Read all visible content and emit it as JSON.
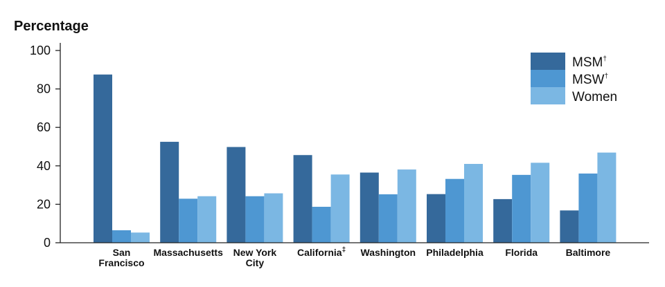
{
  "chart_data": {
    "type": "bar",
    "ylabel": "Percentage",
    "ylim": [
      0,
      100
    ],
    "yticks": [
      "0",
      "20",
      "40",
      "60",
      "80",
      "100"
    ],
    "categories": [
      {
        "line1": "San",
        "line2": "Francisco",
        "sup": ""
      },
      {
        "line1": "Massachusetts",
        "line2": "",
        "sup": ""
      },
      {
        "line1": "New York",
        "line2": "City",
        "sup": ""
      },
      {
        "line1": "California",
        "line2": "",
        "sup": "‡"
      },
      {
        "line1": "Washington",
        "line2": "",
        "sup": ""
      },
      {
        "line1": "Philadelphia",
        "line2": "",
        "sup": ""
      },
      {
        "line1": "Florida",
        "line2": "",
        "sup": ""
      },
      {
        "line1": "Baltimore",
        "line2": "",
        "sup": ""
      }
    ],
    "series": [
      {
        "name": "MSM",
        "sup": "†",
        "color": "#35699b",
        "values": [
          87.5,
          52.5,
          49.8,
          45.6,
          36.5,
          25.3,
          22.7,
          16.8
        ]
      },
      {
        "name": "MSW",
        "sup": "†",
        "color": "#4e97d2",
        "values": [
          6.5,
          22.9,
          24.2,
          18.7,
          25.2,
          33.2,
          35.3,
          36.0
        ]
      },
      {
        "name": "Women",
        "sup": "",
        "color": "#7bb7e3",
        "values": [
          5.3,
          24.2,
          25.7,
          35.5,
          38.1,
          41.0,
          41.6,
          46.9
        ]
      }
    ],
    "legend_position": "top-right",
    "grid": false
  }
}
